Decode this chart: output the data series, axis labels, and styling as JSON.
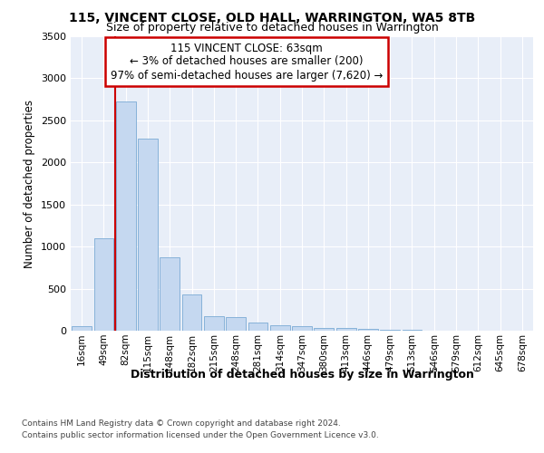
{
  "title1": "115, VINCENT CLOSE, OLD HALL, WARRINGTON, WA5 8TB",
  "title2": "Size of property relative to detached houses in Warrington",
  "xlabel": "Distribution of detached houses by size in Warrington",
  "ylabel": "Number of detached properties",
  "categories": [
    "16sqm",
    "49sqm",
    "82sqm",
    "115sqm",
    "148sqm",
    "182sqm",
    "215sqm",
    "248sqm",
    "281sqm",
    "314sqm",
    "347sqm",
    "380sqm",
    "413sqm",
    "446sqm",
    "479sqm",
    "513sqm",
    "546sqm",
    "579sqm",
    "612sqm",
    "645sqm",
    "678sqm"
  ],
  "values": [
    50,
    1100,
    2730,
    2280,
    870,
    430,
    175,
    165,
    95,
    60,
    50,
    35,
    30,
    20,
    10,
    8,
    5,
    4,
    3,
    2,
    2
  ],
  "bar_color": "#c5d8f0",
  "bar_edge_color": "#7aaad4",
  "vline_color": "#cc0000",
  "annotation_text": "115 VINCENT CLOSE: 63sqm\n← 3% of detached houses are smaller (200)\n97% of semi-detached houses are larger (7,620) →",
  "annotation_box_color": "#ffffff",
  "annotation_box_edge": "#cc0000",
  "ylim": [
    0,
    3500
  ],
  "yticks": [
    0,
    500,
    1000,
    1500,
    2000,
    2500,
    3000,
    3500
  ],
  "bg_color": "#e8eef8",
  "grid_color": "#ffffff",
  "footer1": "Contains HM Land Registry data © Crown copyright and database right 2024.",
  "footer2": "Contains public sector information licensed under the Open Government Licence v3.0."
}
